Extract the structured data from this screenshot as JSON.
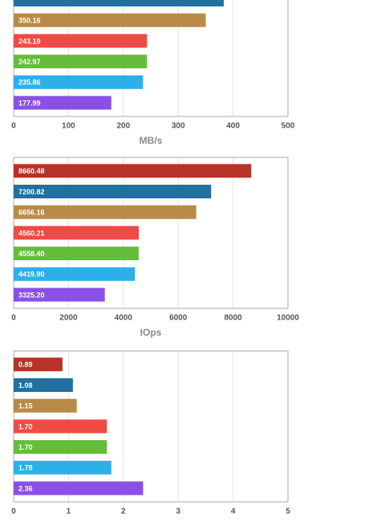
{
  "chart_data": [
    {
      "type": "bar",
      "orientation": "horizontal",
      "x_label": "MB/s",
      "values": [
        383,
        350.16,
        243.19,
        242.97,
        235.86,
        177.99
      ],
      "value_labels": [
        null,
        "350.16",
        "243.19",
        "242.97",
        "235.86",
        "177.99"
      ],
      "colors": [
        "#21709f",
        "#b98a47",
        "#ef4b45",
        "#65bd3a",
        "#2db0ea",
        "#8a50e6"
      ],
      "xlim": [
        0,
        500
      ],
      "xticks": [
        0,
        100,
        200,
        300,
        400,
        500
      ],
      "grid": true
    },
    {
      "type": "bar",
      "orientation": "horizontal",
      "x_label": "IOps",
      "values": [
        8660.48,
        7200.82,
        6656.16,
        4560.21,
        4558.4,
        4419.9,
        3325.2
      ],
      "value_labels": [
        "8660.48",
        "7200.82",
        "6656.16",
        "4560.21",
        "4558.40",
        "4419.90",
        "3325.20"
      ],
      "colors": [
        "#b83227",
        "#21709f",
        "#b98a47",
        "#ef4b45",
        "#65bd3a",
        "#2db0ea",
        "#8a50e6"
      ],
      "xlim": [
        0,
        10000
      ],
      "xticks": [
        0,
        2000,
        4000,
        6000,
        8000,
        10000
      ],
      "grid": true
    },
    {
      "type": "bar",
      "orientation": "horizontal",
      "values": [
        0.89,
        1.08,
        1.15,
        1.7,
        1.7,
        1.78,
        2.36
      ],
      "value_labels": [
        "0.89",
        "1.08",
        "1.15",
        "1.70",
        "1.70",
        "1.78",
        "2.36"
      ],
      "colors": [
        "#b83227",
        "#21709f",
        "#b98a47",
        "#ef4b45",
        "#65bd3a",
        "#2db0ea",
        "#8a50e6"
      ],
      "xlim": [
        0,
        5
      ],
      "xticks": [
        0,
        1,
        2,
        3,
        4,
        5
      ],
      "grid": true
    }
  ]
}
